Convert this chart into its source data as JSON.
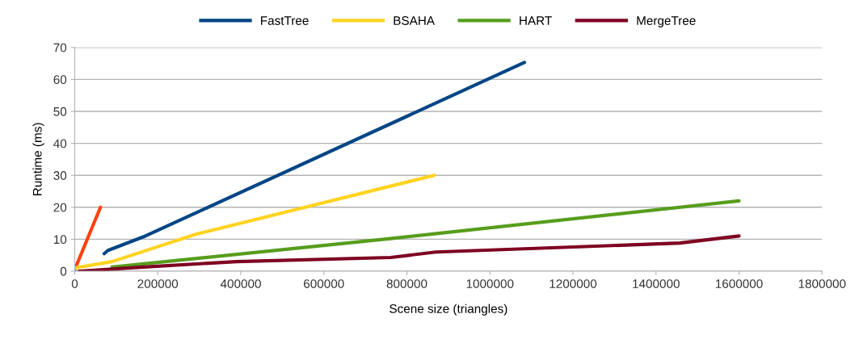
{
  "chart_data": {
    "type": "line",
    "xlabel": "Scene size (triangles)",
    "ylabel": "Runtime (ms)",
    "xlim": [
      0,
      1800000
    ],
    "xticks": [
      0,
      200000,
      400000,
      600000,
      800000,
      1000000,
      1200000,
      1400000,
      1600000,
      1800000
    ],
    "ylim": [
      0,
      70
    ],
    "yticks": [
      0,
      10,
      20,
      30,
      40,
      50,
      60,
      70
    ],
    "grid": "y",
    "legend": "top",
    "line_style": "solid",
    "marker": "none",
    "series": [
      {
        "name": "FastTree",
        "color": "#004586",
        "x": [
          71000,
          80000,
          170000,
          1083000
        ],
        "values": [
          5.5,
          6.5,
          11,
          65.3
        ]
      },
      {
        "color": "#ff420e",
        "x": [
          0,
          62000
        ],
        "values": [
          0.5,
          20
        ]
      },
      {
        "name": "BSAHA",
        "color": "#ffd320",
        "x": [
          0,
          90000,
          290000,
          866000
        ],
        "values": [
          1,
          3,
          11.5,
          30
        ]
      },
      {
        "name": "HART",
        "color": "#579d1c",
        "x": [
          90000,
          760000,
          1600000
        ],
        "values": [
          1.3,
          10.2,
          22
        ]
      },
      {
        "name": "MergeTree",
        "color": "#7e0021",
        "x": [
          10000,
          165000,
          390000,
          761000,
          870000,
          1457000,
          1600000
        ],
        "values": [
          0,
          1.3,
          3,
          4.3,
          6,
          8.8,
          11
        ]
      }
    ]
  }
}
